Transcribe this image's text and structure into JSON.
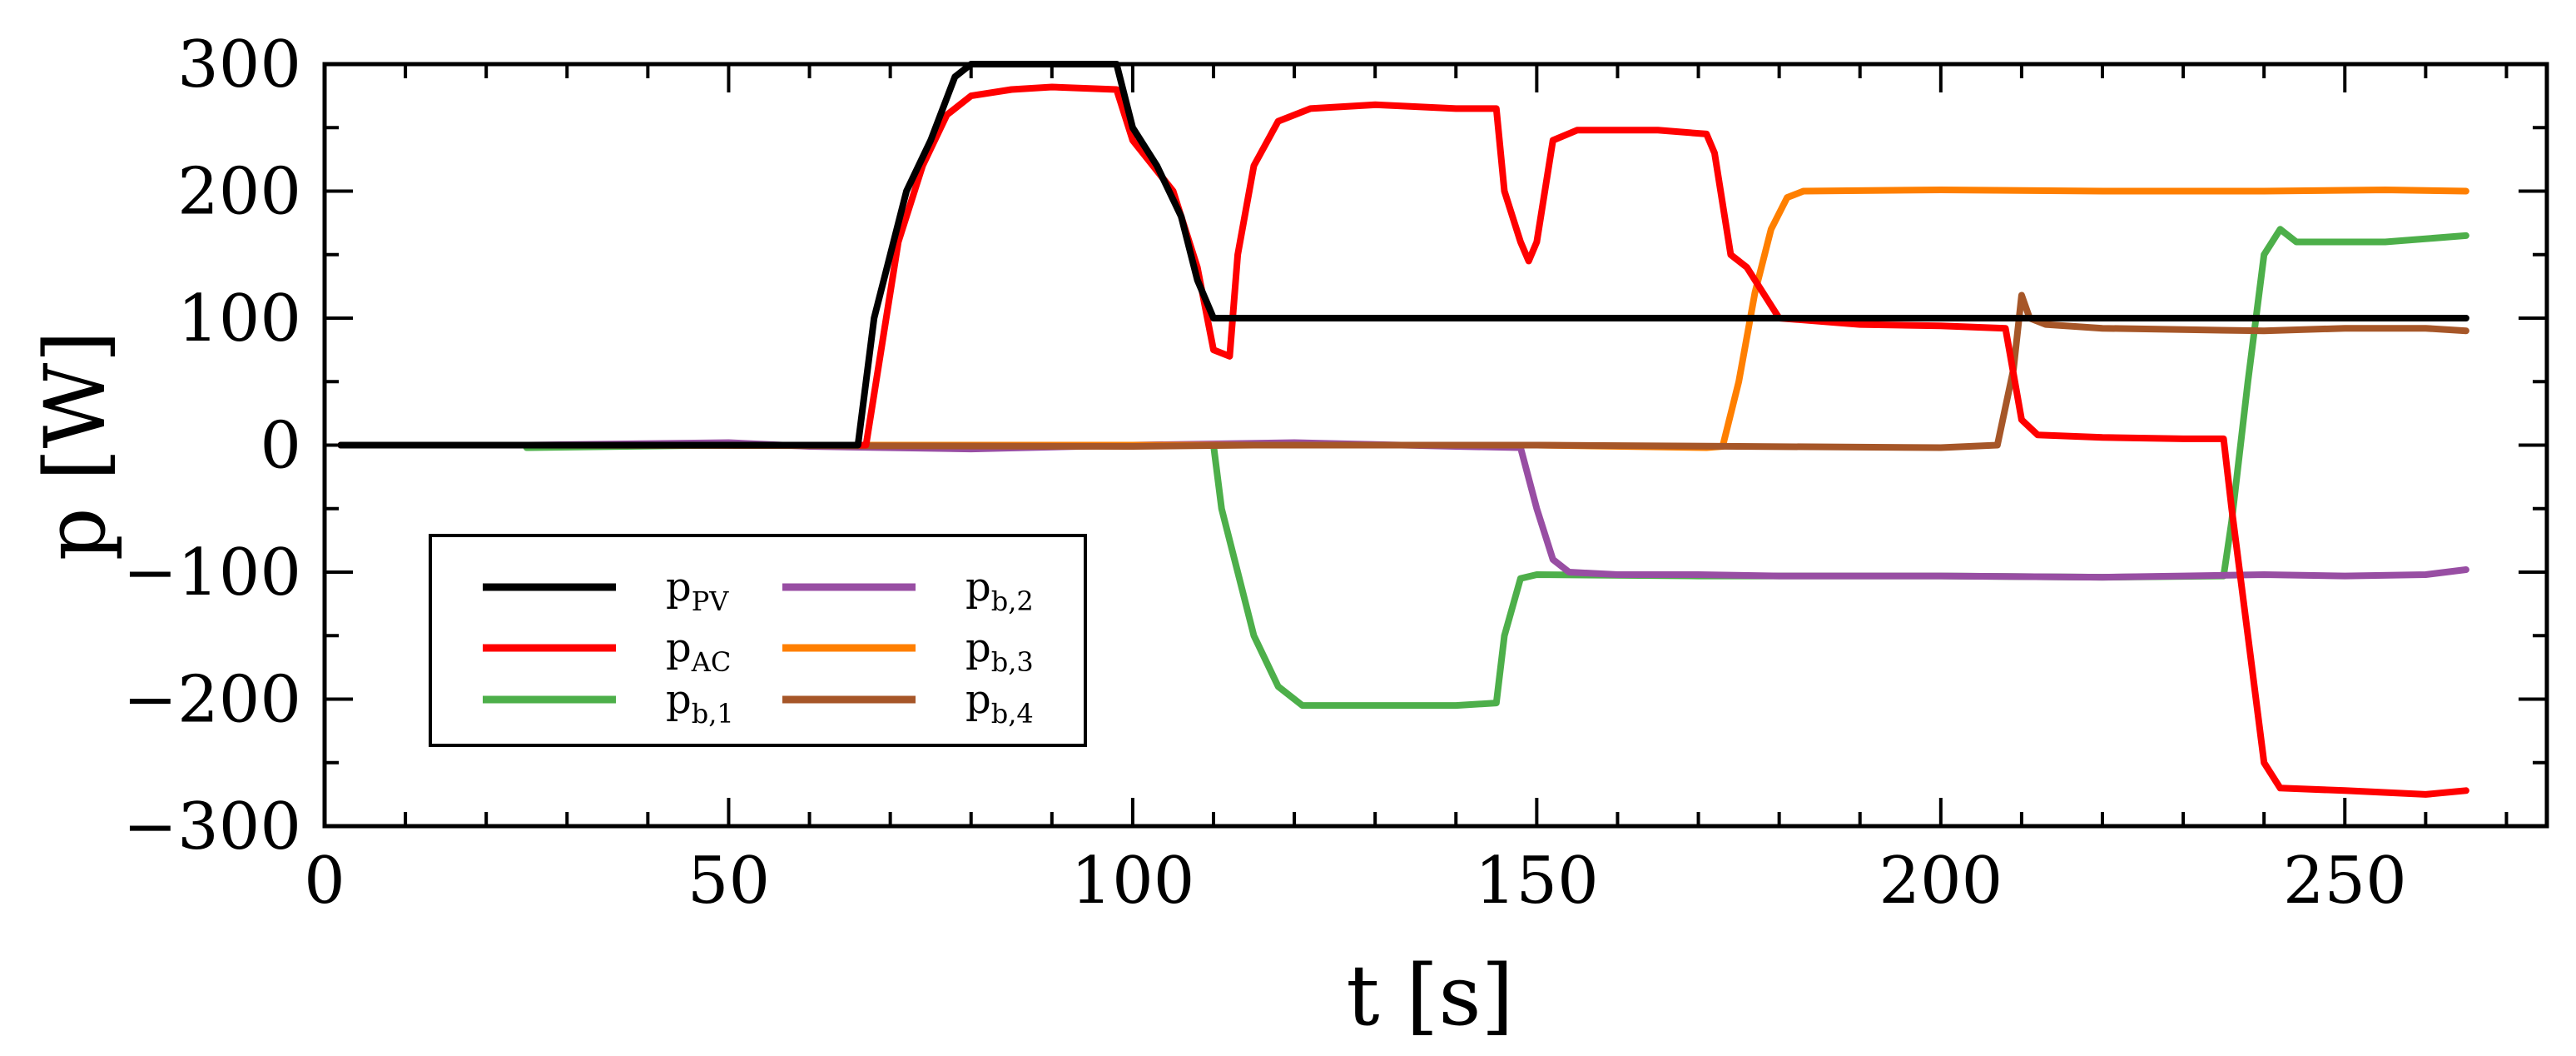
{
  "chart_data": {
    "type": "line",
    "title": "",
    "xlabel": "t [s]",
    "ylabel": "p [W]",
    "xlim": [
      0,
      275
    ],
    "ylim": [
      -300,
      300
    ],
    "xticks": [
      0,
      50,
      100,
      150,
      200,
      250
    ],
    "yticks": [
      300,
      200,
      100,
      0,
      -100,
      -200,
      -300
    ],
    "xtick_labels": [
      "0",
      "50",
      "100",
      "150",
      "200",
      "250"
    ],
    "ytick_labels": [
      "300",
      "200",
      "100",
      "0",
      "−100",
      "−200",
      "−300"
    ],
    "grid": false,
    "legend_position": "lower-left",
    "series": [
      {
        "name": "p_PV",
        "label_main": "p",
        "label_sub": "PV",
        "color": "#000000",
        "points": [
          [
            2,
            0
          ],
          [
            66,
            0
          ],
          [
            68,
            100
          ],
          [
            70,
            150
          ],
          [
            72,
            200
          ],
          [
            75,
            240
          ],
          [
            78,
            290
          ],
          [
            80,
            300
          ],
          [
            98,
            300
          ],
          [
            100,
            250
          ],
          [
            103,
            220
          ],
          [
            106,
            180
          ],
          [
            108,
            130
          ],
          [
            110,
            100
          ],
          [
            265,
            100
          ]
        ]
      },
      {
        "name": "p_AC",
        "label_main": "p",
        "label_sub": "AC",
        "color": "#ff0000",
        "points": [
          [
            2,
            0
          ],
          [
            67,
            0
          ],
          [
            69,
            80
          ],
          [
            71,
            160
          ],
          [
            74,
            220
          ],
          [
            77,
            260
          ],
          [
            80,
            275
          ],
          [
            85,
            280
          ],
          [
            90,
            282
          ],
          [
            98,
            280
          ],
          [
            100,
            240
          ],
          [
            105,
            200
          ],
          [
            108,
            140
          ],
          [
            110,
            75
          ],
          [
            112,
            70
          ],
          [
            113,
            150
          ],
          [
            115,
            220
          ],
          [
            118,
            255
          ],
          [
            122,
            265
          ],
          [
            130,
            268
          ],
          [
            140,
            265
          ],
          [
            145,
            265
          ],
          [
            146,
            200
          ],
          [
            148,
            160
          ],
          [
            149,
            145
          ],
          [
            150,
            160
          ],
          [
            152,
            240
          ],
          [
            155,
            248
          ],
          [
            165,
            248
          ],
          [
            171,
            245
          ],
          [
            172,
            230
          ],
          [
            174,
            150
          ],
          [
            176,
            140
          ],
          [
            178,
            120
          ],
          [
            180,
            100
          ],
          [
            190,
            95
          ],
          [
            200,
            94
          ],
          [
            208,
            92
          ],
          [
            210,
            20
          ],
          [
            212,
            8
          ],
          [
            220,
            6
          ],
          [
            230,
            5
          ],
          [
            235,
            5
          ],
          [
            236,
            -50
          ],
          [
            238,
            -150
          ],
          [
            240,
            -250
          ],
          [
            242,
            -270
          ],
          [
            250,
            -272
          ],
          [
            260,
            -275
          ],
          [
            265,
            -272
          ]
        ]
      },
      {
        "name": "p_b,1",
        "label_main": "p",
        "label_sub": "b,1",
        "color": "#4daf4a",
        "points": [
          [
            25,
            -2
          ],
          [
            50,
            0
          ],
          [
            80,
            0
          ],
          [
            100,
            0
          ],
          [
            110,
            0
          ],
          [
            111,
            -50
          ],
          [
            113,
            -100
          ],
          [
            115,
            -150
          ],
          [
            118,
            -190
          ],
          [
            121,
            -205
          ],
          [
            130,
            -205
          ],
          [
            140,
            -205
          ],
          [
            145,
            -203
          ],
          [
            146,
            -150
          ],
          [
            148,
            -105
          ],
          [
            150,
            -102
          ],
          [
            170,
            -103
          ],
          [
            200,
            -103
          ],
          [
            220,
            -104
          ],
          [
            235,
            -103
          ],
          [
            236,
            -60
          ],
          [
            238,
            50
          ],
          [
            240,
            150
          ],
          [
            242,
            170
          ],
          [
            244,
            160
          ],
          [
            255,
            160
          ],
          [
            265,
            165
          ]
        ]
      },
      {
        "name": "p_b,2",
        "label_main": "p",
        "label_sub": "b,2",
        "color": "#984ea3",
        "points": [
          [
            25,
            0
          ],
          [
            50,
            2
          ],
          [
            60,
            -1
          ],
          [
            80,
            -3
          ],
          [
            100,
            0
          ],
          [
            120,
            2
          ],
          [
            140,
            -1
          ],
          [
            148,
            -2
          ],
          [
            150,
            -50
          ],
          [
            152,
            -90
          ],
          [
            154,
            -100
          ],
          [
            160,
            -102
          ],
          [
            170,
            -102
          ],
          [
            180,
            -103
          ],
          [
            200,
            -103
          ],
          [
            220,
            -104
          ],
          [
            230,
            -103
          ],
          [
            240,
            -102
          ],
          [
            250,
            -103
          ],
          [
            260,
            -102
          ],
          [
            265,
            -98
          ]
        ]
      },
      {
        "name": "p_b,3",
        "label_main": "p",
        "label_sub": "b,3",
        "color": "#ff7f00",
        "points": [
          [
            25,
            0
          ],
          [
            100,
            0
          ],
          [
            150,
            0
          ],
          [
            171,
            -2
          ],
          [
            173,
            -1
          ],
          [
            175,
            50
          ],
          [
            177,
            120
          ],
          [
            179,
            170
          ],
          [
            181,
            195
          ],
          [
            183,
            200
          ],
          [
            200,
            201
          ],
          [
            220,
            200
          ],
          [
            240,
            200
          ],
          [
            255,
            201
          ],
          [
            265,
            200
          ]
        ]
      },
      {
        "name": "p_b,4",
        "label_main": "p",
        "label_sub": "b,4",
        "color": "#a65628",
        "points": [
          [
            25,
            0
          ],
          [
            100,
            -1
          ],
          [
            115,
            0
          ],
          [
            150,
            0
          ],
          [
            175,
            -1
          ],
          [
            200,
            -2
          ],
          [
            207,
            0
          ],
          [
            209,
            60
          ],
          [
            210,
            118
          ],
          [
            211,
            100
          ],
          [
            213,
            95
          ],
          [
            220,
            92
          ],
          [
            240,
            90
          ],
          [
            250,
            92
          ],
          [
            260,
            92
          ],
          [
            265,
            90
          ]
        ]
      }
    ]
  }
}
